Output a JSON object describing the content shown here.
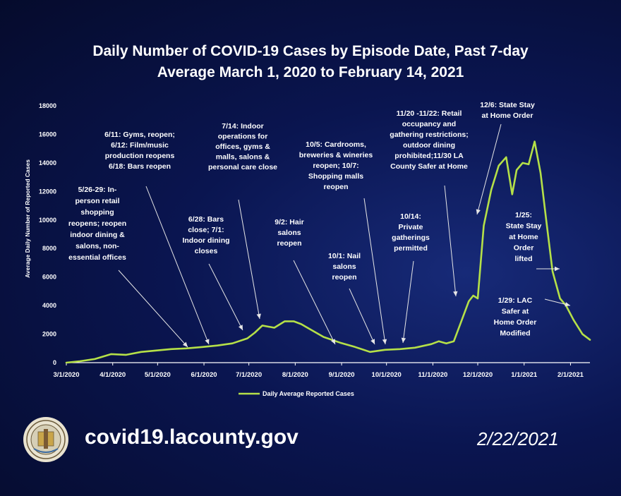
{
  "title": "Daily Number of COVID-19 Cases by Episode Date, Past 7-day\nAverage March 1, 2020 to February 14, 2021",
  "footer": {
    "url": "covid19.lacounty.gov",
    "date": "2/22/2021"
  },
  "colors": {
    "line": "#b5e048",
    "axis": "#ffffff",
    "background": "#0a1550"
  },
  "chart_data": {
    "type": "line",
    "title": "Daily Number of COVID-19 Cases by Episode Date, Past 7-day Average March 1, 2020 to February 14, 2021",
    "xlabel": "",
    "ylabel": "Average Daily Number of Reported Cases",
    "ylim": [
      0,
      18000
    ],
    "yticks": [
      0,
      2000,
      4000,
      6000,
      8000,
      10000,
      12000,
      14000,
      16000,
      18000
    ],
    "xticks": [
      "3/1/2020",
      "4/1/2020",
      "5/1/2020",
      "6/1/2020",
      "7/1/2020",
      "8/1/2020",
      "9/1/2020",
      "10/1/2020",
      "11/1/2020",
      "12/1/2020",
      "1/1/2021",
      "2/1/2021"
    ],
    "grid": false,
    "legend_position": "bottom",
    "series": [
      {
        "name": "Daily Average Reported Cases",
        "x": [
          "2020-03-01",
          "2020-03-10",
          "2020-03-20",
          "2020-03-31",
          "2020-04-10",
          "2020-04-20",
          "2020-04-30",
          "2020-05-10",
          "2020-05-20",
          "2020-05-31",
          "2020-06-10",
          "2020-06-20",
          "2020-06-30",
          "2020-07-05",
          "2020-07-10",
          "2020-07-18",
          "2020-07-25",
          "2020-07-31",
          "2020-08-05",
          "2020-08-10",
          "2020-08-20",
          "2020-08-31",
          "2020-09-10",
          "2020-09-20",
          "2020-09-30",
          "2020-10-10",
          "2020-10-20",
          "2020-10-31",
          "2020-11-05",
          "2020-11-10",
          "2020-11-15",
          "2020-11-20",
          "2020-11-25",
          "2020-11-28",
          "2020-12-01",
          "2020-12-05",
          "2020-12-10",
          "2020-12-15",
          "2020-12-20",
          "2020-12-24",
          "2020-12-27",
          "2020-12-31",
          "2021-01-04",
          "2021-01-08",
          "2021-01-12",
          "2021-01-16",
          "2021-01-20",
          "2021-01-25",
          "2021-01-29",
          "2021-02-03",
          "2021-02-09",
          "2021-02-14"
        ],
        "y": [
          0,
          100,
          250,
          600,
          550,
          750,
          850,
          950,
          1000,
          1100,
          1200,
          1350,
          1700,
          2100,
          2600,
          2450,
          2900,
          2900,
          2700,
          2400,
          1800,
          1400,
          1100,
          750,
          900,
          950,
          1050,
          1300,
          1500,
          1350,
          1500,
          2900,
          4300,
          4700,
          4500,
          9600,
          12100,
          13800,
          14400,
          11800,
          13500,
          14000,
          13900,
          15500,
          13300,
          9800,
          6400,
          4500,
          4000,
          3000,
          2000,
          1600
        ]
      }
    ],
    "annotations": [
      "5/26-29: In-person retail shopping reopens; reopen indoor dining & salons, non-essential offices",
      "6/11: Gyms, reopen; 6/12: Film/music production reopens 6/18: Bars reopen",
      "6/28: Bars close; 7/1: Indoor dining closes",
      "7/14: Indoor operations for offices, gyms & malls, salons & personal care close",
      "9/2: Hair salons reopen",
      "10/1: Nail salons reopen",
      "10/5: Cardrooms, breweries & wineries reopen; 10/7: Shopping malls reopen",
      "10/14: Private gatherings permitted",
      "11/20 -11/22: Retail occupancy and gathering restrictions; outdoor dining prohibited;11/30 LA County Safer at Home",
      "12/6: State Stay at Home Order",
      "1/25: State Stay at Home Order lifted",
      "1/29: LAC Safer at Home Order Modified"
    ]
  }
}
